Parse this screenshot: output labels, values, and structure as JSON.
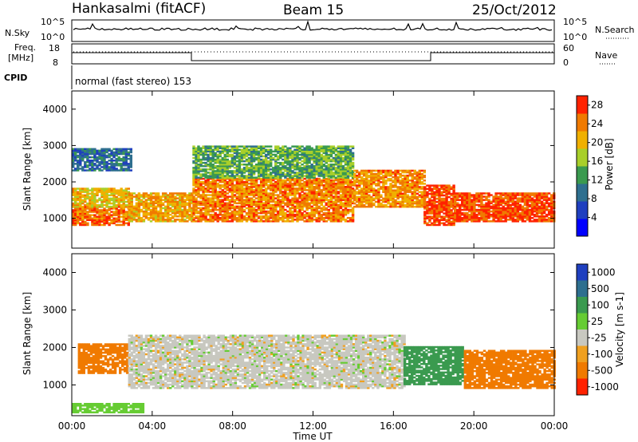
{
  "header": {
    "station": "Hankasalmi (fitACF)",
    "beam": "Beam 15",
    "date": "25/Oct/2012"
  },
  "panels": {
    "nsky": {
      "left_label": "N.Sky",
      "left_ticks": [
        "10^5",
        "10^0"
      ],
      "right_label": "N.Search",
      "right_ticks": [
        "10^5",
        "10^0"
      ]
    },
    "freq": {
      "left_label_line1": "Freq.",
      "left_label_line2": "[MHz]",
      "left_ticks": [
        "18",
        "8"
      ],
      "right_label": "Nave",
      "right_ticks": [
        "60",
        "0"
      ],
      "cpid_label": "CPID",
      "cpid_text": "normal (fast stereo) 153"
    }
  },
  "chart_data": [
    {
      "type": "heatmap",
      "title": "",
      "xlabel": "",
      "ylabel": "Slant Range [km]",
      "xlim": [
        "00:00",
        "24:00"
      ],
      "ylim": [
        180,
        4500
      ],
      "y_ticks": [
        1000,
        2000,
        3000,
        4000
      ],
      "x_ticks": [
        "00:00",
        "04:00",
        "08:00",
        "12:00",
        "16:00",
        "20:00",
        "00:00"
      ],
      "colorbar": {
        "label": "Power [dB]",
        "ticks": [
          4,
          8,
          12,
          16,
          20,
          24,
          28
        ],
        "range": [
          0,
          30
        ],
        "colors": [
          "#0000ff",
          "#1f3fbf",
          "#2e6f8f",
          "#3a9a4f",
          "#a8cf2a",
          "#f0b000",
          "#f07a00",
          "#ff2200"
        ]
      },
      "echo_regions": [
        {
          "t_start": 0.0,
          "t_end": 2.8,
          "r_low": 800,
          "r_high": 1300,
          "value": 25
        },
        {
          "t_start": 0.0,
          "t_end": 2.8,
          "r_low": 1300,
          "r_high": 1800,
          "value": 20
        },
        {
          "t_start": 2.8,
          "t_end": 6.0,
          "r_low": 900,
          "r_high": 1700,
          "value": 22
        },
        {
          "t_start": 6.0,
          "t_end": 14.0,
          "r_low": 900,
          "r_high": 2100,
          "value": 24
        },
        {
          "t_start": 6.0,
          "t_end": 14.0,
          "r_low": 2100,
          "r_high": 3000,
          "value": 14
        },
        {
          "t_start": 14.0,
          "t_end": 17.5,
          "r_low": 1300,
          "r_high": 2300,
          "value": 23
        },
        {
          "t_start": 17.5,
          "t_end": 19.0,
          "r_low": 800,
          "r_high": 1900,
          "value": 27
        },
        {
          "t_start": 19.0,
          "t_end": 24.0,
          "r_low": 900,
          "r_high": 1700,
          "value": 27
        },
        {
          "t_start": 0.0,
          "t_end": 3.0,
          "r_low": 2300,
          "r_high": 2900,
          "value": 9
        }
      ]
    },
    {
      "type": "heatmap",
      "title": "",
      "xlabel": "Time UT",
      "ylabel": "Slant Range [km]",
      "xlim": [
        "00:00",
        "24:00"
      ],
      "ylim": [
        180,
        4500
      ],
      "y_ticks": [
        1000,
        2000,
        3000,
        4000
      ],
      "x_ticks": [
        "00:00",
        "04:00",
        "08:00",
        "12:00",
        "16:00",
        "20:00",
        "00:00"
      ],
      "colorbar": {
        "label": "Velocity [m s-1]",
        "ticks": [
          1000,
          500,
          100,
          25,
          -25,
          -100,
          -500,
          -1000
        ],
        "colors": [
          "#1f3fbf",
          "#2e6f8f",
          "#3a9a4f",
          "#66cc33",
          "#c8c8c0",
          "#f0a020",
          "#f07a00",
          "#ff2200"
        ]
      },
      "echo_regions": [
        {
          "t_start": 0.3,
          "t_end": 2.8,
          "r_low": 1300,
          "r_high": 2100,
          "value": -300
        },
        {
          "t_start": 2.8,
          "t_end": 16.5,
          "r_low": 900,
          "r_high": 2300,
          "value": 0
        },
        {
          "t_start": 16.5,
          "t_end": 19.5,
          "r_low": 1000,
          "r_high": 2000,
          "value": 200
        },
        {
          "t_start": 19.5,
          "t_end": 24.0,
          "r_low": 900,
          "r_high": 1900,
          "value": -300
        },
        {
          "t_start": 0.0,
          "t_end": 3.5,
          "r_low": 250,
          "r_high": 500,
          "value": 60
        }
      ]
    }
  ]
}
